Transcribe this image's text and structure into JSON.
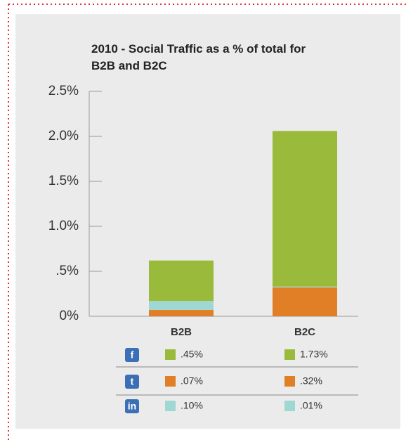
{
  "chart_data": {
    "type": "stacked_bar",
    "title": "2010 - Social Traffic as a % of total for B2B and B2C",
    "categories": [
      "B2B",
      "B2C"
    ],
    "series": [
      {
        "name": "t",
        "color": "#e07f26",
        "values": [
          0.07,
          0.32
        ],
        "value_labels": [
          ".07%",
          ".32%"
        ]
      },
      {
        "name": "in",
        "color": "#9fd8d3",
        "values": [
          0.1,
          0.01
        ],
        "value_labels": [
          ".10%",
          ".01%"
        ]
      },
      {
        "name": "f",
        "color": "#9aba3c",
        "values": [
          0.45,
          1.73
        ],
        "value_labels": [
          ".45%",
          "1.73%"
        ]
      }
    ],
    "legend_order": [
      2,
      0,
      1
    ],
    "ylim": [
      0,
      2.5
    ],
    "yticks": [
      {
        "value": 0,
        "label": "0%"
      },
      {
        "value": 0.5,
        "label": ".5%"
      },
      {
        "value": 1.0,
        "label": "1.0%"
      },
      {
        "value": 1.5,
        "label": "1.5%"
      },
      {
        "value": 2.0,
        "label": "2.0%"
      },
      {
        "value": 2.5,
        "label": "2.5%"
      }
    ]
  }
}
